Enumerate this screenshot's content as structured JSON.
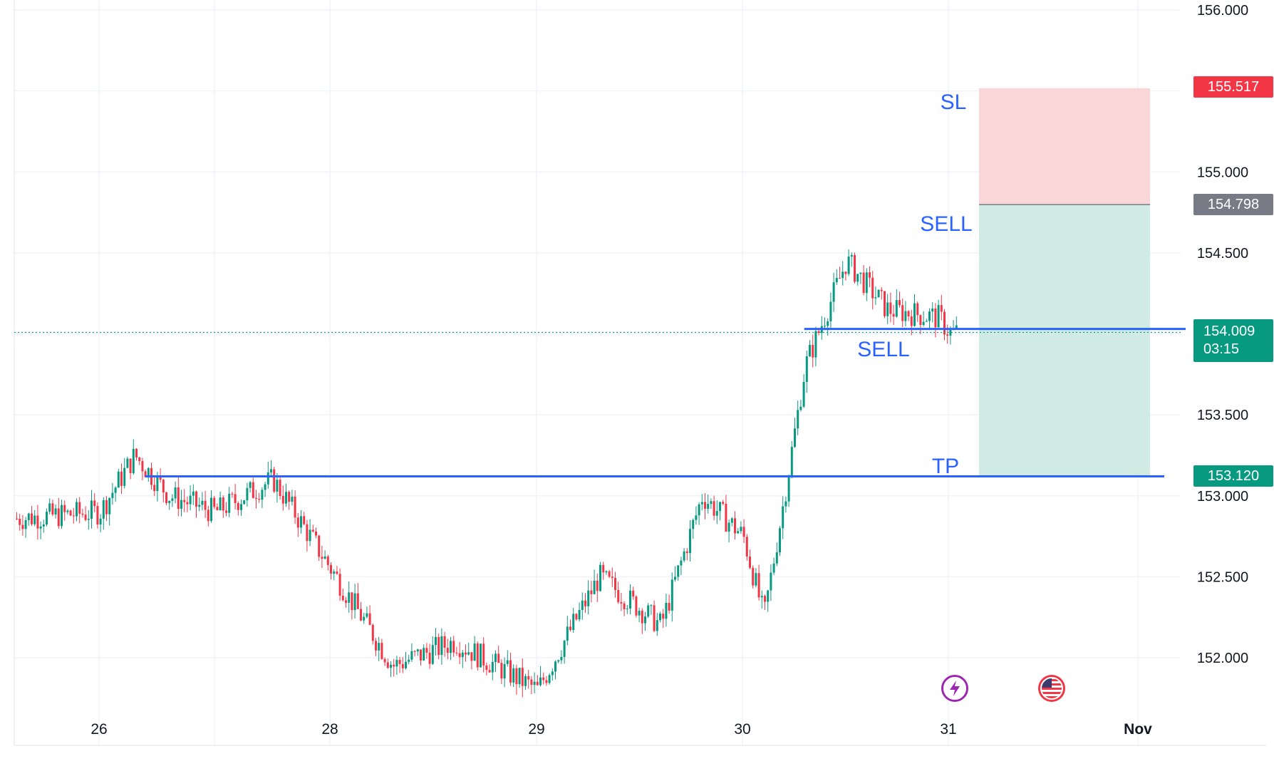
{
  "chart_data": {
    "type": "candlestick",
    "title": "",
    "ylim": [
      151.75,
      156.05
    ],
    "y_ticks": [
      "156.000",
      "155.000",
      "154.500",
      "153.500",
      "153.000",
      "152.500",
      "152.000"
    ],
    "x_ticks": [
      "26",
      "28",
      "29",
      "30",
      "31",
      "Nov"
    ],
    "grid": true,
    "price_series": [
      {
        "x": "25",
        "y": 152.95
      },
      {
        "x": "25.5",
        "y": 152.85
      },
      {
        "x": "26",
        "y": 152.9
      },
      {
        "x": "26.3",
        "y": 153.25
      },
      {
        "x": "26.6",
        "y": 153.0
      },
      {
        "x": "27",
        "y": 152.9
      },
      {
        "x": "27.5",
        "y": 153.1
      },
      {
        "x": "28",
        "y": 152.55
      },
      {
        "x": "28.3",
        "y": 151.95
      },
      {
        "x": "28.6",
        "y": 152.1
      },
      {
        "x": "29",
        "y": 151.8
      },
      {
        "x": "29.3",
        "y": 152.5
      },
      {
        "x": "29.6",
        "y": 152.2
      },
      {
        "x": "29.8",
        "y": 153.0
      },
      {
        "x": "30",
        "y": 152.75
      },
      {
        "x": "30.1",
        "y": 152.25
      },
      {
        "x": "30.2",
        "y": 153.0
      },
      {
        "x": "30.3",
        "y": 153.8
      },
      {
        "x": "30.5",
        "y": 154.45
      },
      {
        "x": "30.7",
        "y": 154.15
      },
      {
        "x": "30.95",
        "y": 154.1
      },
      {
        "x": "31",
        "y": 154.009
      }
    ],
    "levels": {
      "sell_level": 154.03,
      "tp_level": 153.12
    },
    "position": {
      "stop_loss": 155.517,
      "entry": 154.798,
      "take_profit": 153.12,
      "current_price": 154.009
    },
    "price_labels": {
      "stop_loss": "155.517",
      "entry": "154.798",
      "take_profit": "153.120",
      "current": "154.009",
      "countdown": "03:15"
    },
    "annotations": [
      "SL",
      "SELL",
      "SELL",
      "TP"
    ]
  },
  "colors": {
    "background": "#ffffff",
    "grid": "#f0f3fa",
    "candle_up": "#089981",
    "candle_down": "#f23645",
    "drawn_line": "#2962ff",
    "annotation_text": "#2962ff",
    "sl_zone": "#f9d6d8",
    "tp_zone": "#d0ebe4",
    "sl_tag": "#f23645",
    "entry_tag": "#787b86",
    "tp_tag": "#089981",
    "current_tag": "#089981"
  },
  "icons": [
    "lightning-icon",
    "us-flag-icon"
  ]
}
